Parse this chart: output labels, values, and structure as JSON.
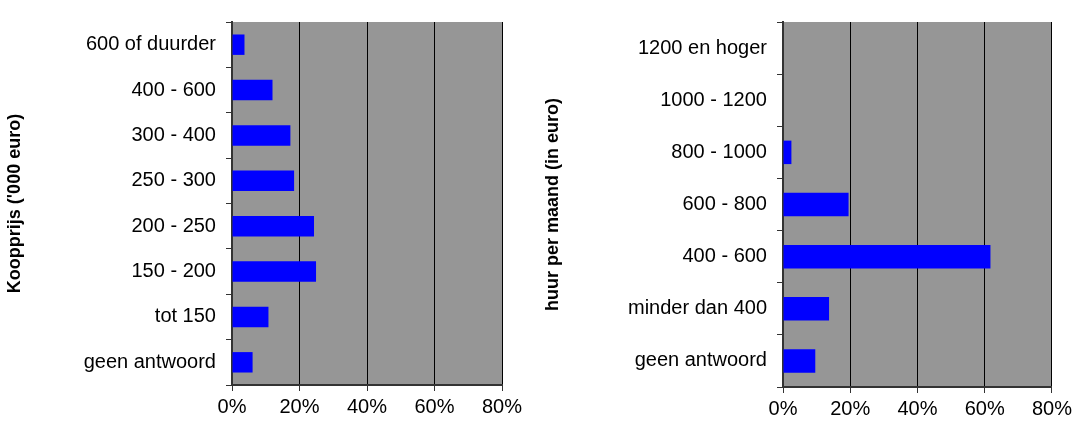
{
  "chart_data": [
    {
      "type": "bar",
      "orientation": "horizontal",
      "ylabel": "Koopprijs ('000 euro)",
      "categories": [
        "600 of duurder",
        "400 - 600",
        "300 - 400",
        "250 - 300",
        "200 - 250",
        "150 - 200",
        "tot 150",
        "geen antwoord"
      ],
      "values": [
        3.7,
        12,
        17.3,
        18.4,
        24.3,
        24.9,
        10.8,
        6.1
      ],
      "color": "#0000ff",
      "xlim": [
        0,
        80
      ],
      "xticks": [
        {
          "value": 0,
          "label": "0%"
        },
        {
          "value": 20,
          "label": "20%"
        },
        {
          "value": 40,
          "label": "40%"
        },
        {
          "value": 60,
          "label": "60%"
        },
        {
          "value": 80,
          "label": "80%"
        }
      ],
      "grid": "x",
      "legend": false
    },
    {
      "type": "bar",
      "orientation": "horizontal",
      "ylabel": "huur per maand (in euro)",
      "categories": [
        "1200 en hoger",
        "1000 - 1200",
        "800 - 1000",
        "600 - 800",
        "400 - 600",
        "minder dan 400",
        "geen antwoord"
      ],
      "values": [
        0,
        0,
        2.5,
        19.5,
        61.7,
        13.7,
        9.6
      ],
      "color": "#0000ff",
      "xlim": [
        0,
        80
      ],
      "xticks": [
        {
          "value": 0,
          "label": "0%"
        },
        {
          "value": 20,
          "label": "20%"
        },
        {
          "value": 40,
          "label": "40%"
        },
        {
          "value": 60,
          "label": "60%"
        },
        {
          "value": 80,
          "label": "80%"
        }
      ],
      "grid": "x",
      "legend": false
    }
  ]
}
